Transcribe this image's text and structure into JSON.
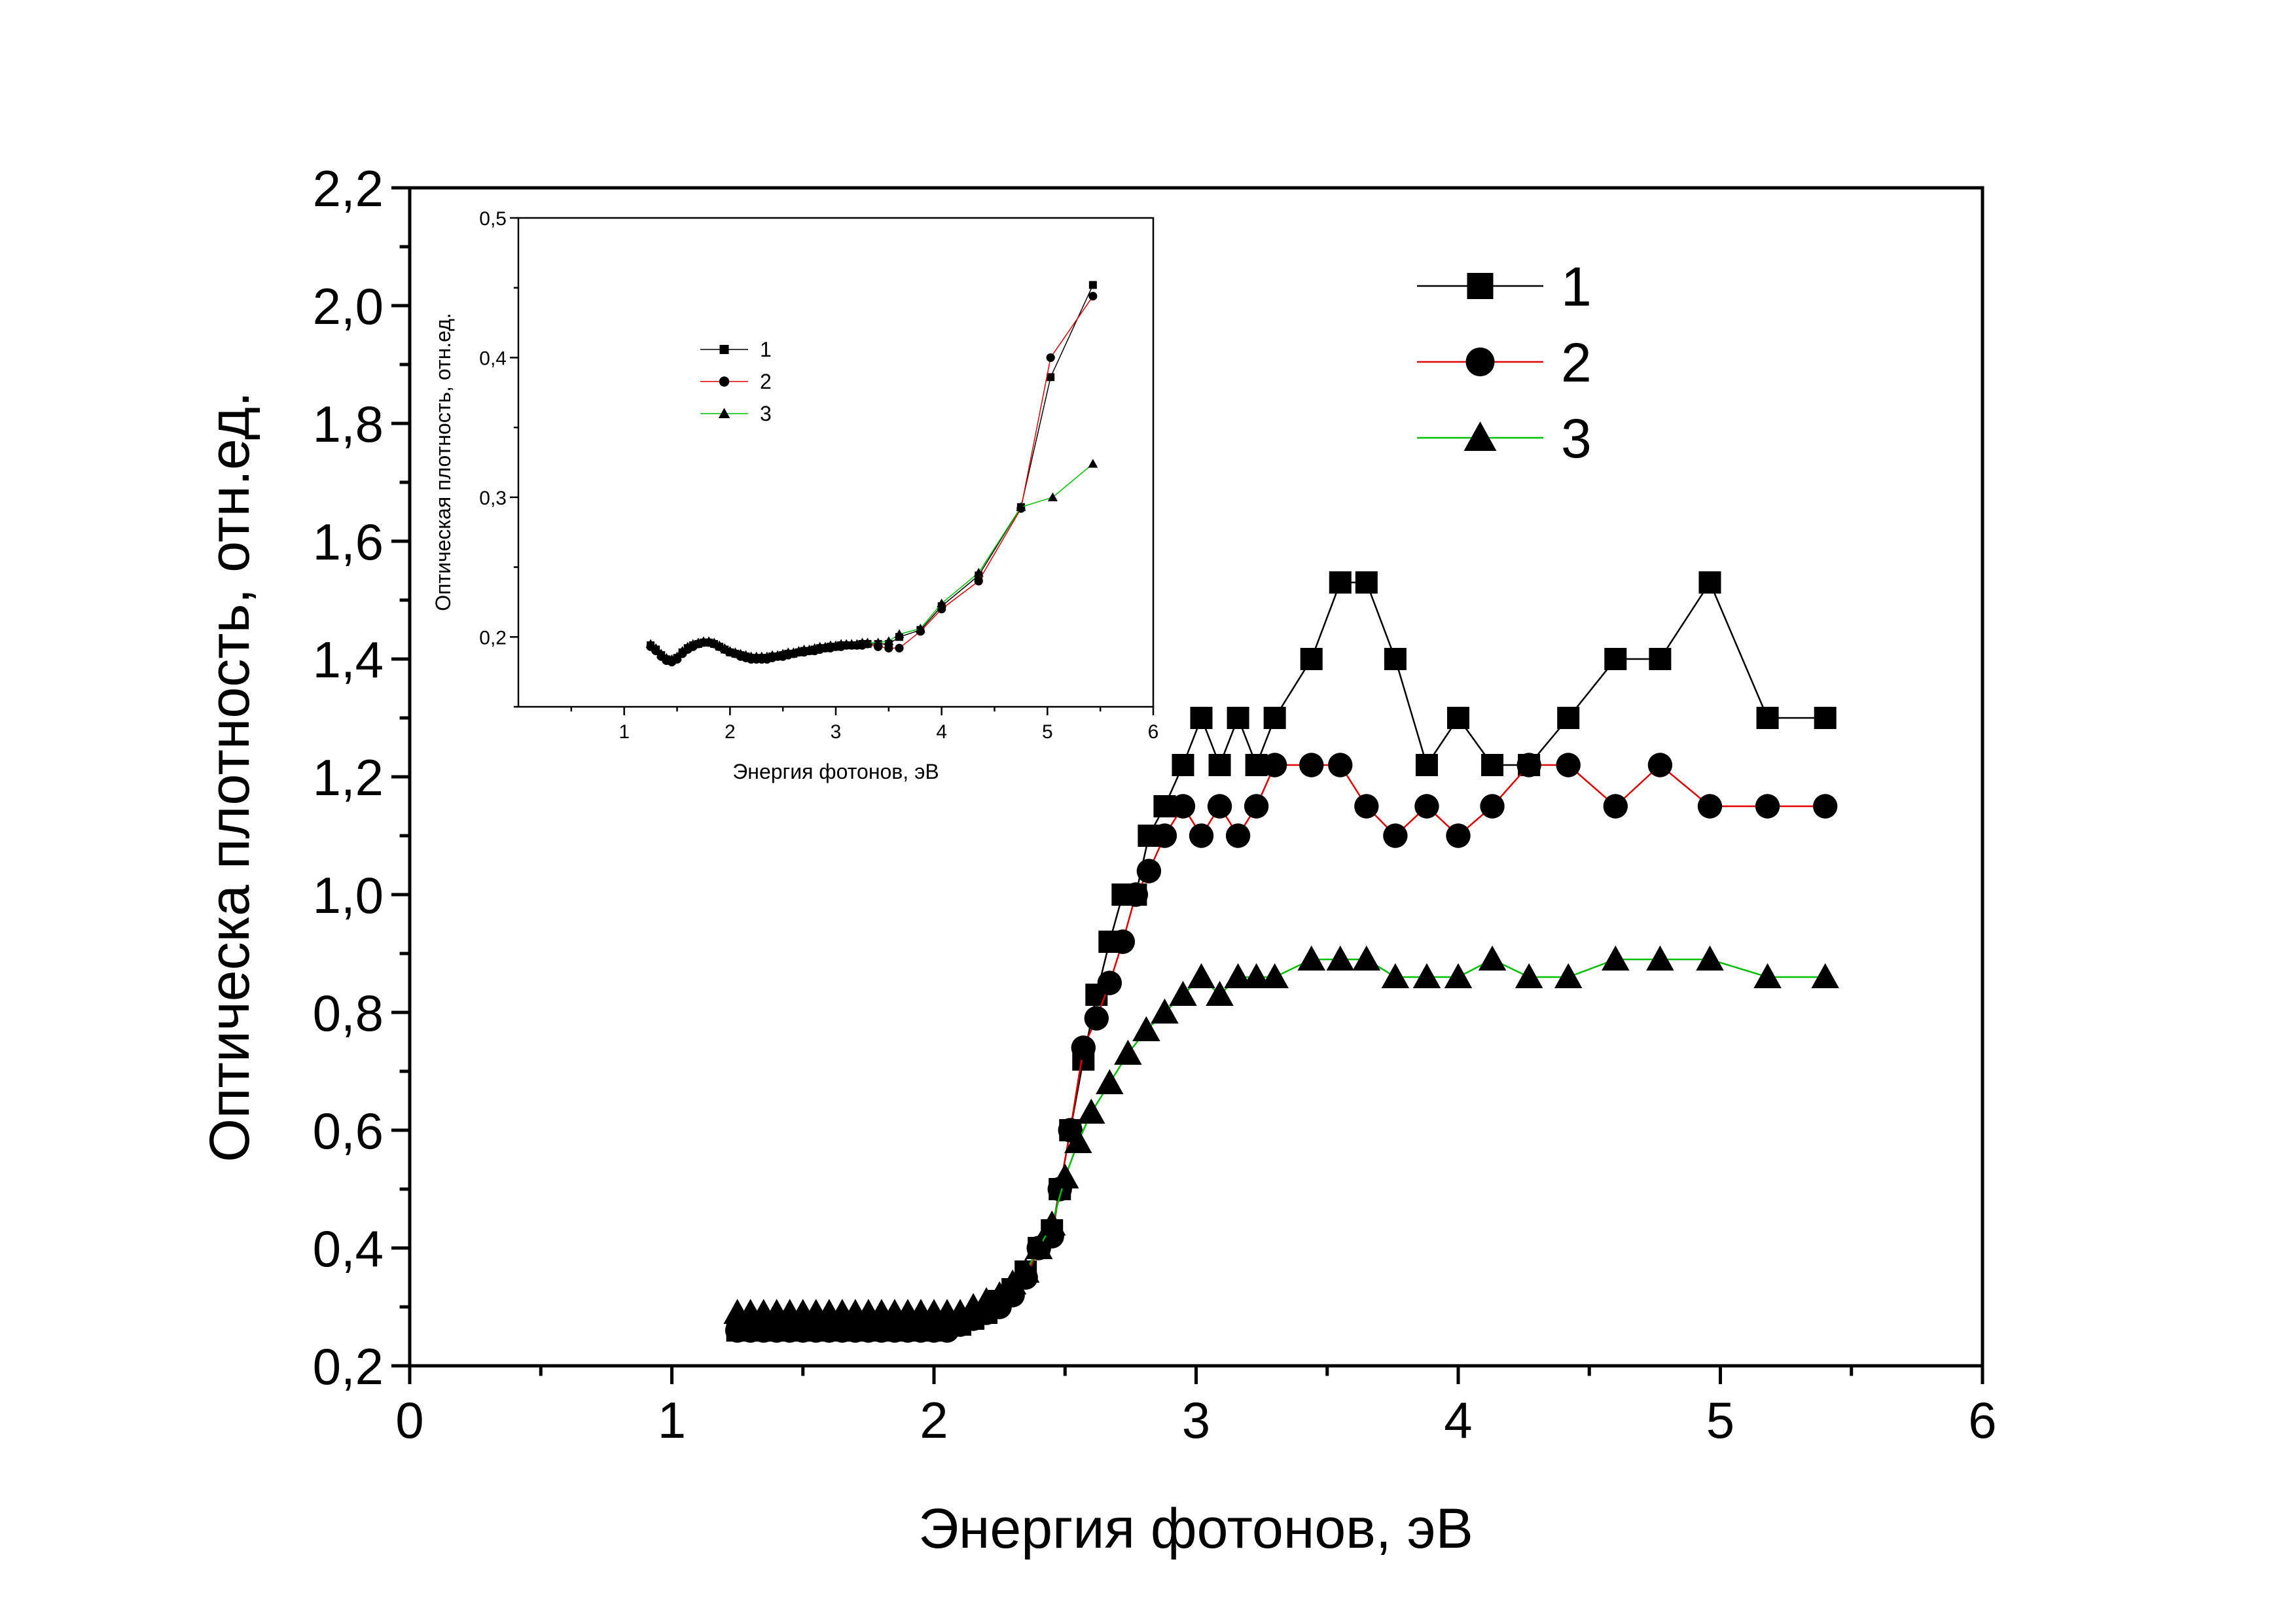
{
  "chart_data": [
    {
      "id": "main",
      "type": "line",
      "xlabel": "Энергия фотонов, эВ",
      "ylabel": "Оптическа плотность, отн.ед.",
      "xlim": [
        0,
        6
      ],
      "ylim": [
        0.2,
        2.2
      ],
      "x_ticks": [
        0,
        1,
        2,
        3,
        4,
        5,
        6
      ],
      "x_tick_labels": [
        "0",
        "1",
        "2",
        "3",
        "4",
        "5",
        "6"
      ],
      "y_ticks": [
        0.2,
        0.4,
        0.6,
        0.8,
        1.0,
        1.2,
        1.4,
        1.6,
        1.8,
        2.0,
        2.2
      ],
      "y_tick_labels": [
        "0,2",
        "0,4",
        "0,6",
        "0,8",
        "1,0",
        "1,2",
        "1,4",
        "1,6",
        "1,8",
        "2,0",
        "2,2"
      ],
      "legend_position": "top-right",
      "grid": false,
      "series": [
        {
          "name": "1",
          "marker": "square",
          "line_color": "#000000",
          "x": [
            1.25,
            1.3,
            1.35,
            1.4,
            1.45,
            1.5,
            1.55,
            1.6,
            1.65,
            1.7,
            1.75,
            1.8,
            1.85,
            1.9,
            1.95,
            2.0,
            2.05,
            2.1,
            2.15,
            2.2,
            2.25,
            2.3,
            2.35,
            2.4,
            2.45,
            2.48,
            2.52,
            2.57,
            2.62,
            2.67,
            2.72,
            2.77,
            2.82,
            2.88,
            2.95,
            3.02,
            3.09,
            3.16,
            3.23,
            3.3,
            3.44,
            3.55,
            3.65,
            3.76,
            3.88,
            4.0,
            4.13,
            4.27,
            4.42,
            4.6,
            4.77,
            4.96,
            5.18,
            5.4
          ],
          "y": [
            0.26,
            0.26,
            0.26,
            0.26,
            0.26,
            0.26,
            0.26,
            0.26,
            0.26,
            0.26,
            0.26,
            0.26,
            0.26,
            0.26,
            0.26,
            0.26,
            0.27,
            0.27,
            0.28,
            0.29,
            0.31,
            0.33,
            0.36,
            0.4,
            0.43,
            0.5,
            0.6,
            0.72,
            0.83,
            0.92,
            1.0,
            1.0,
            1.1,
            1.15,
            1.22,
            1.3,
            1.22,
            1.3,
            1.22,
            1.3,
            1.4,
            1.53,
            1.53,
            1.4,
            1.22,
            1.3,
            1.22,
            1.22,
            1.3,
            1.4,
            1.4,
            1.53,
            1.3,
            1.3
          ]
        },
        {
          "name": "2",
          "marker": "circle",
          "line_color": "#e00000",
          "x": [
            1.25,
            1.3,
            1.35,
            1.4,
            1.45,
            1.5,
            1.55,
            1.6,
            1.65,
            1.7,
            1.75,
            1.8,
            1.85,
            1.9,
            1.95,
            2.0,
            2.05,
            2.1,
            2.15,
            2.2,
            2.25,
            2.3,
            2.35,
            2.4,
            2.45,
            2.48,
            2.52,
            2.57,
            2.62,
            2.67,
            2.72,
            2.77,
            2.82,
            2.88,
            2.95,
            3.02,
            3.09,
            3.16,
            3.23,
            3.3,
            3.44,
            3.55,
            3.65,
            3.76,
            3.88,
            4.0,
            4.13,
            4.27,
            4.42,
            4.6,
            4.77,
            4.96,
            5.18,
            5.4
          ],
          "y": [
            0.26,
            0.26,
            0.26,
            0.26,
            0.26,
            0.26,
            0.26,
            0.26,
            0.26,
            0.26,
            0.26,
            0.26,
            0.26,
            0.26,
            0.26,
            0.26,
            0.26,
            0.27,
            0.28,
            0.29,
            0.3,
            0.32,
            0.35,
            0.4,
            0.42,
            0.5,
            0.6,
            0.74,
            0.79,
            0.85,
            0.92,
            1.0,
            1.04,
            1.1,
            1.15,
            1.1,
            1.15,
            1.1,
            1.15,
            1.22,
            1.22,
            1.22,
            1.15,
            1.1,
            1.15,
            1.1,
            1.15,
            1.22,
            1.22,
            1.15,
            1.22,
            1.15,
            1.15,
            1.15
          ]
        },
        {
          "name": "3",
          "marker": "triangle",
          "line_color": "#00c000",
          "x": [
            1.25,
            1.3,
            1.35,
            1.4,
            1.45,
            1.5,
            1.55,
            1.6,
            1.65,
            1.7,
            1.75,
            1.8,
            1.85,
            1.9,
            1.95,
            2.0,
            2.05,
            2.1,
            2.15,
            2.2,
            2.25,
            2.3,
            2.35,
            2.4,
            2.45,
            2.5,
            2.55,
            2.6,
            2.67,
            2.74,
            2.81,
            2.88,
            2.95,
            3.02,
            3.09,
            3.16,
            3.23,
            3.3,
            3.44,
            3.55,
            3.65,
            3.76,
            3.88,
            4.0,
            4.13,
            4.27,
            4.42,
            4.6,
            4.77,
            4.96,
            5.18,
            5.4
          ],
          "y": [
            0.29,
            0.29,
            0.29,
            0.29,
            0.29,
            0.29,
            0.29,
            0.29,
            0.29,
            0.29,
            0.29,
            0.29,
            0.29,
            0.29,
            0.29,
            0.29,
            0.29,
            0.29,
            0.3,
            0.31,
            0.32,
            0.34,
            0.36,
            0.4,
            0.44,
            0.52,
            0.58,
            0.63,
            0.68,
            0.73,
            0.77,
            0.8,
            0.83,
            0.86,
            0.83,
            0.86,
            0.86,
            0.86,
            0.89,
            0.89,
            0.89,
            0.86,
            0.86,
            0.86,
            0.89,
            0.86,
            0.86,
            0.89,
            0.89,
            0.89,
            0.86,
            0.86
          ]
        }
      ]
    },
    {
      "id": "inset",
      "type": "line",
      "xlabel": "Энергия фотонов, эВ",
      "ylabel": "Оптическая плотность, отн.ед.",
      "xlim": [
        0,
        6
      ],
      "ylim": [
        0.15,
        0.5
      ],
      "x_ticks": [
        1,
        2,
        3,
        4,
        5,
        6
      ],
      "x_tick_labels": [
        "1",
        "2",
        "3",
        "4",
        "5",
        "6"
      ],
      "y_ticks": [
        0.2,
        0.3,
        0.4,
        0.5
      ],
      "y_tick_labels": [
        "0,2",
        "0,3",
        "0,4",
        "0,5"
      ],
      "legend_position": "top-left",
      "grid": false,
      "series": [
        {
          "name": "1",
          "marker": "square",
          "line_color": "#000000",
          "x": [
            1.25,
            1.3,
            1.35,
            1.4,
            1.45,
            1.5,
            1.55,
            1.6,
            1.65,
            1.7,
            1.75,
            1.8,
            1.85,
            1.9,
            1.95,
            2.0,
            2.05,
            2.1,
            2.15,
            2.2,
            2.25,
            2.3,
            2.35,
            2.4,
            2.45,
            2.5,
            2.55,
            2.6,
            2.65,
            2.7,
            2.75,
            2.8,
            2.85,
            2.9,
            2.95,
            3.0,
            3.05,
            3.1,
            3.15,
            3.2,
            3.25,
            3.3,
            3.4,
            3.5,
            3.6,
            3.8,
            4.0,
            4.35,
            4.75,
            5.03,
            5.43
          ],
          "y": [
            0.194,
            0.191,
            0.187,
            0.184,
            0.183,
            0.185,
            0.189,
            0.192,
            0.194,
            0.195,
            0.196,
            0.196,
            0.195,
            0.193,
            0.191,
            0.189,
            0.188,
            0.187,
            0.186,
            0.185,
            0.185,
            0.185,
            0.185,
            0.186,
            0.186,
            0.187,
            0.188,
            0.188,
            0.189,
            0.19,
            0.19,
            0.191,
            0.192,
            0.192,
            0.193,
            0.193,
            0.194,
            0.194,
            0.194,
            0.194,
            0.195,
            0.195,
            0.195,
            0.195,
            0.2,
            0.205,
            0.222,
            0.244,
            0.293,
            0.386,
            0.452
          ]
        },
        {
          "name": "2",
          "marker": "circle",
          "line_color": "#e00000",
          "x": [
            1.25,
            1.3,
            1.35,
            1.4,
            1.45,
            1.5,
            1.55,
            1.6,
            1.65,
            1.7,
            1.75,
            1.8,
            1.85,
            1.9,
            1.95,
            2.0,
            2.05,
            2.1,
            2.15,
            2.2,
            2.25,
            2.3,
            2.35,
            2.4,
            2.45,
            2.5,
            2.55,
            2.6,
            2.65,
            2.7,
            2.75,
            2.8,
            2.85,
            2.9,
            2.95,
            3.0,
            3.05,
            3.1,
            3.15,
            3.2,
            3.25,
            3.3,
            3.4,
            3.5,
            3.6,
            3.8,
            4.0,
            4.35,
            4.75,
            5.03,
            5.43
          ],
          "y": [
            0.193,
            0.19,
            0.186,
            0.183,
            0.182,
            0.184,
            0.188,
            0.191,
            0.193,
            0.195,
            0.196,
            0.196,
            0.195,
            0.193,
            0.191,
            0.189,
            0.188,
            0.186,
            0.185,
            0.184,
            0.184,
            0.184,
            0.184,
            0.185,
            0.186,
            0.186,
            0.187,
            0.188,
            0.189,
            0.189,
            0.19,
            0.19,
            0.191,
            0.192,
            0.192,
            0.193,
            0.193,
            0.194,
            0.194,
            0.194,
            0.194,
            0.195,
            0.193,
            0.192,
            0.192,
            0.204,
            0.22,
            0.24,
            0.292,
            0.4,
            0.444
          ]
        },
        {
          "name": "3",
          "marker": "triangle",
          "line_color": "#00c000",
          "x": [
            1.25,
            1.3,
            1.35,
            1.4,
            1.45,
            1.5,
            1.55,
            1.6,
            1.65,
            1.7,
            1.75,
            1.8,
            1.85,
            1.9,
            1.95,
            2.0,
            2.05,
            2.1,
            2.15,
            2.2,
            2.25,
            2.3,
            2.35,
            2.4,
            2.45,
            2.5,
            2.55,
            2.6,
            2.65,
            2.7,
            2.75,
            2.8,
            2.85,
            2.9,
            2.95,
            3.0,
            3.05,
            3.1,
            3.15,
            3.2,
            3.25,
            3.3,
            3.4,
            3.5,
            3.6,
            3.8,
            4.0,
            4.35,
            4.75,
            5.05,
            5.43
          ],
          "y": [
            0.195,
            0.192,
            0.188,
            0.185,
            0.184,
            0.186,
            0.19,
            0.193,
            0.195,
            0.196,
            0.197,
            0.197,
            0.196,
            0.194,
            0.192,
            0.19,
            0.189,
            0.188,
            0.187,
            0.186,
            0.186,
            0.186,
            0.186,
            0.187,
            0.187,
            0.188,
            0.189,
            0.189,
            0.19,
            0.191,
            0.191,
            0.192,
            0.193,
            0.193,
            0.194,
            0.194,
            0.195,
            0.195,
            0.195,
            0.195,
            0.196,
            0.196,
            0.196,
            0.197,
            0.202,
            0.206,
            0.224,
            0.246,
            0.293,
            0.3,
            0.324
          ]
        }
      ]
    }
  ]
}
